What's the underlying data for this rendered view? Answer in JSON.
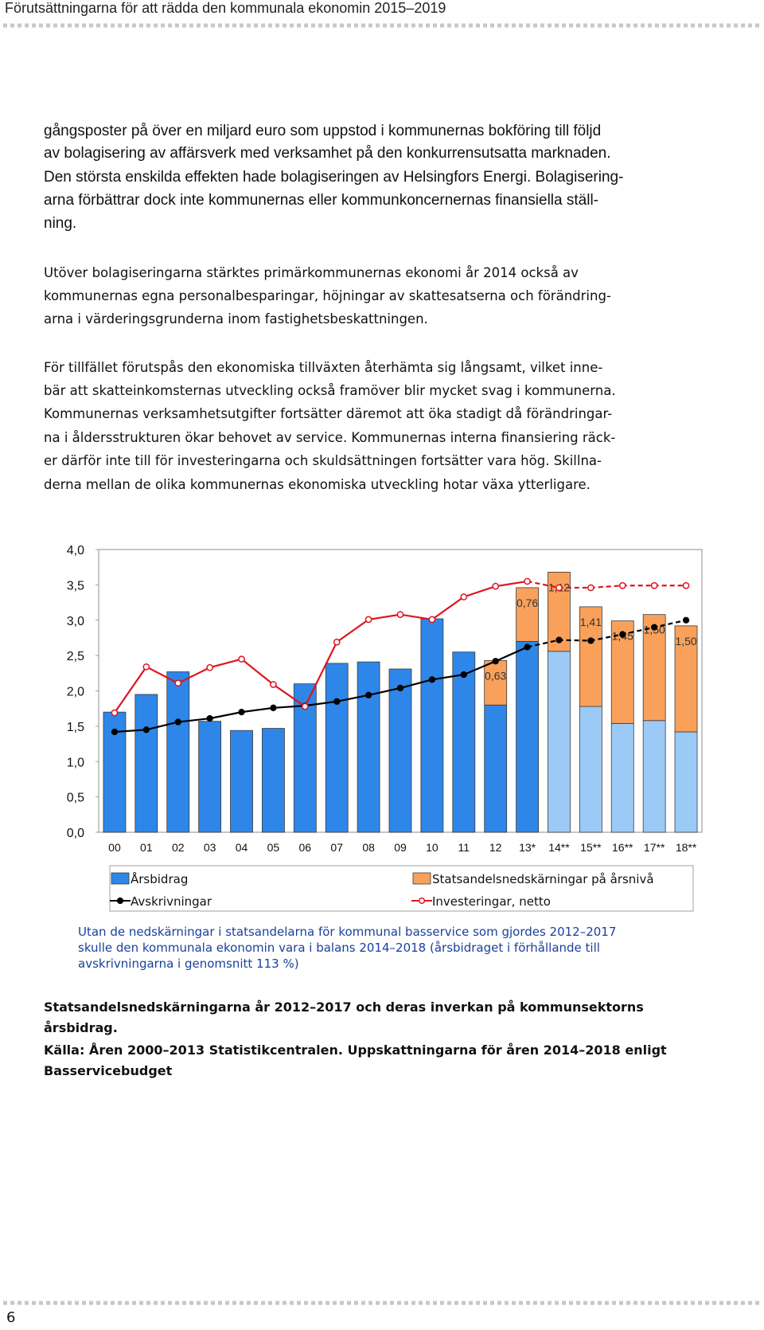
{
  "header": {
    "title": "Förutsättningarna för att rädda den kommunala ekonomin 2015–2019"
  },
  "paragraphs": [
    [
      "gångsposter på över en miljard euro som uppstod i kommunernas bokföring till följd",
      "av bolagisering av affärsverk med verksamhet på den konkurrensutsatta marknaden.",
      "Den största enskilda effekten hade bolagiseringen av Helsingfors Energi. Bolagisering-",
      "arna förbättrar dock inte kommunernas eller kommunkoncernernas finansiella ställ-",
      "ning."
    ],
    [
      "Utöver bolagiseringarna stärktes primärkommunernas ekonomi år 2014 också av",
      "kommunernas egna personalbesparingar, höjningar av skattesatserna och förändring-",
      "arna i värderingsgrunderna inom fastighetsbeskattningen."
    ],
    [
      "För tillfället förutspås den ekonomiska tillväxten återhämta sig långsamt, vilket inne-",
      "bär att skatteinkomsternas utveckling också framöver blir mycket svag i kommunerna.",
      "Kommunernas verksamhetsutgifter fortsätter däremot att öka stadigt då förändringar-",
      "na i åldersstrukturen ökar behovet av service. Kommunernas interna finansiering räck-",
      "er därför inte till för investeringarna och skuldsättningen fortsätter vara hög. Skillna-",
      "derna mellan de olika kommunernas ekonomiska utveckling hotar växa ytterligare."
    ]
  ],
  "chart_data": {
    "type": "combo",
    "categories": [
      "00",
      "01",
      "02",
      "03",
      "04",
      "05",
      "06",
      "07",
      "08",
      "09",
      "10",
      "11",
      "12",
      "13*",
      "14**",
      "15**",
      "16**",
      "17**",
      "18**"
    ],
    "ylim": [
      0,
      4
    ],
    "yticks": [
      {
        "value": 0,
        "label": "0,0"
      },
      {
        "value": 0.5,
        "label": "0,5"
      },
      {
        "value": 1,
        "label": "1,0"
      },
      {
        "value": 1.5,
        "label": "1,5"
      },
      {
        "value": 2,
        "label": "2,0"
      },
      {
        "value": 2.5,
        "label": "2,5"
      },
      {
        "value": 3,
        "label": "3,0"
      },
      {
        "value": 3.5,
        "label": "3,5"
      },
      {
        "value": 4,
        "label": "4,0"
      }
    ],
    "series": [
      {
        "name": "Årsbidrag",
        "type": "bar",
        "color": "#2e86e8",
        "colors": [
          "#2e86e8",
          "#2e86e8",
          "#2e86e8",
          "#2e86e8",
          "#2e86e8",
          "#2e86e8",
          "#2e86e8",
          "#2e86e8",
          "#2e86e8",
          "#2e86e8",
          "#2e86e8",
          "#2e86e8",
          "#2e86e8",
          "#2e86e8",
          "#9ccaf7",
          "#9ccaf7",
          "#9ccaf7",
          "#9ccaf7",
          "#9ccaf7"
        ],
        "values": [
          1.7,
          1.95,
          2.27,
          1.57,
          1.44,
          1.47,
          2.1,
          2.39,
          2.41,
          2.31,
          3.02,
          2.55,
          1.8,
          2.7,
          2.56,
          1.78,
          1.54,
          1.58,
          1.42
        ]
      },
      {
        "name": "Statsandelsnedskärningar på årsnivå",
        "type": "bar",
        "stacked": true,
        "color": "#f9a15a",
        "values": [
          null,
          null,
          null,
          null,
          null,
          null,
          null,
          null,
          null,
          null,
          null,
          null,
          0.63,
          0.76,
          1.12,
          1.41,
          1.45,
          1.5,
          1.5
        ],
        "value_labels": [
          null,
          null,
          null,
          null,
          null,
          null,
          null,
          null,
          null,
          null,
          null,
          null,
          "0,63",
          "0,76",
          "1,12",
          "1,41",
          "1,45",
          "1,50",
          "1,50"
        ]
      },
      {
        "name": "Avskrivningar",
        "type": "line",
        "color": "#000000",
        "marker": "filled",
        "values": [
          1.42,
          1.45,
          1.56,
          1.61,
          1.7,
          1.76,
          1.79,
          1.85,
          1.94,
          2.04,
          2.16,
          2.23,
          2.42,
          2.62,
          2.72,
          2.71,
          2.8,
          2.9,
          3.0
        ]
      },
      {
        "name": "Investeringar, netto",
        "type": "line",
        "color": "#e0141e",
        "marker": "open",
        "values": [
          1.69,
          2.34,
          2.11,
          2.33,
          2.45,
          2.09,
          1.78,
          2.69,
          3.01,
          3.08,
          3.01,
          3.33,
          3.48,
          3.55,
          3.46,
          3.46,
          3.49,
          3.49,
          3.49
        ]
      }
    ]
  },
  "chart_note": [
    "Utan de nedskärningar i statsandelarna för kommunal basservice som gjordes 2012–2017",
    "skulle den kommunala ekonomin vara i balans 2014–2018 (årsbidraget i förhållande till",
    "avskrivningarna i genomsnitt 113 %)"
  ],
  "caption": [
    "Statsandelsnedskärningarna år 2012–2017 och deras inverkan på kommunsektorns",
    "årsbidrag.",
    "Källa: Åren 2000–2013 Statistikcentralen. Uppskattningarna för åren 2014–2018 enligt",
    "Basservicebudget"
  ],
  "page_number": "6"
}
